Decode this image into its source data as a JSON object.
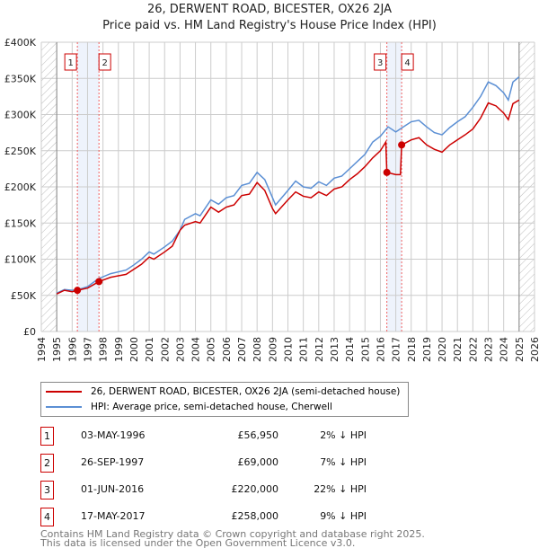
{
  "title": "26, DERWENT ROAD, BICESTER, OX26 2JA",
  "subtitle": "Price paid vs. HM Land Registry's House Price Index (HPI)",
  "chart_data": {
    "type": "line",
    "title": "26, DERWENT ROAD, BICESTER, OX26 2JA",
    "subtitle": "Price paid vs. HM Land Registry's House Price Index (HPI)",
    "xlim": [
      1994,
      2026
    ],
    "ylim": [
      0,
      400000
    ],
    "x_ticks": [
      "1994",
      "1995",
      "1996",
      "1997",
      "1998",
      "1999",
      "2000",
      "2001",
      "2002",
      "2003",
      "2004",
      "2005",
      "2006",
      "2007",
      "2008",
      "2009",
      "2010",
      "2011",
      "2012",
      "2013",
      "2014",
      "2015",
      "2016",
      "2017",
      "2018",
      "2019",
      "2020",
      "2021",
      "2022",
      "2023",
      "2024",
      "2025",
      "2026"
    ],
    "y_ticks": [
      "£0",
      "£50K",
      "£100K",
      "£150K",
      "£200K",
      "£250K",
      "£300K",
      "£350K",
      "£400K"
    ],
    "grid": true,
    "series": [
      {
        "name": "26, DERWENT ROAD, BICESTER, OX26 2JA (semi-detached house)",
        "color": "#cc0000",
        "x": [
          1995,
          1995.5,
          1996,
          1996.34,
          1997,
          1997.74,
          1998.5,
          1999.5,
          2000.5,
          2001,
          2001.3,
          2002,
          2002.5,
          2003,
          2003.3,
          2004,
          2004.3,
          2005,
          2005.5,
          2006,
          2006.5,
          2007,
          2007.5,
          2008,
          2008.5,
          2009,
          2009.2,
          2010,
          2010.5,
          2011,
          2011.5,
          2012,
          2012.5,
          2013,
          2013.5,
          2014,
          2014.5,
          2015,
          2015.5,
          2016,
          2016.35,
          2016.42,
          2017,
          2017.3,
          2017.38,
          2018,
          2018.5,
          2019,
          2019.5,
          2020,
          2020.5,
          2021,
          2021.5,
          2022,
          2022.5,
          2023,
          2023.5,
          2024,
          2024.3,
          2024.6,
          2025
        ],
        "y": [
          52000,
          57000,
          55000,
          56950,
          60000,
          69000,
          75000,
          79000,
          93000,
          103000,
          100000,
          110000,
          118000,
          140000,
          147000,
          152000,
          150000,
          172000,
          165000,
          172000,
          175000,
          188000,
          190000,
          206000,
          195000,
          170000,
          163000,
          182000,
          193000,
          187000,
          185000,
          193000,
          188000,
          197000,
          200000,
          210000,
          218000,
          228000,
          240000,
          250000,
          262000,
          220000,
          217000,
          217000,
          258000,
          265000,
          268000,
          258000,
          252000,
          248000,
          258000,
          265000,
          272000,
          280000,
          295000,
          316000,
          312000,
          302000,
          293000,
          315000,
          320000
        ]
      },
      {
        "name": "HPI: Average price, semi-detached house, Cherwell",
        "color": "#5b8fd4",
        "x": [
          1995,
          1995.5,
          1996,
          1996.4,
          1997,
          1997.7,
          1998.5,
          1999.5,
          2000,
          2000.5,
          2001,
          2001.3,
          2002,
          2002.5,
          2003,
          2003.3,
          2004,
          2004.3,
          2005,
          2005.5,
          2006,
          2006.5,
          2007,
          2007.5,
          2008,
          2008.5,
          2009,
          2009.2,
          2010,
          2010.5,
          2011,
          2011.5,
          2012,
          2012.5,
          2013,
          2013.5,
          2014,
          2014.5,
          2015,
          2015.5,
          2016,
          2016.5,
          2017,
          2017.5,
          2018,
          2018.5,
          2019,
          2019.5,
          2020,
          2020.5,
          2021,
          2021.5,
          2022,
          2022.5,
          2023,
          2023.5,
          2024,
          2024.3,
          2024.6,
          2025
        ],
        "y": [
          53000,
          58000,
          57000,
          58000,
          62000,
          73000,
          80000,
          85000,
          92000,
          100000,
          110000,
          107000,
          117000,
          125000,
          140000,
          155000,
          163000,
          160000,
          182000,
          176000,
          185000,
          188000,
          202000,
          205000,
          220000,
          210000,
          185000,
          175000,
          195000,
          208000,
          200000,
          198000,
          207000,
          202000,
          212000,
          215000,
          225000,
          235000,
          245000,
          262000,
          270000,
          283000,
          276000,
          283000,
          290000,
          292000,
          283000,
          275000,
          272000,
          282000,
          290000,
          297000,
          310000,
          325000,
          345000,
          340000,
          330000,
          320000,
          345000,
          352000
        ]
      }
    ],
    "sales": [
      {
        "label": "1",
        "date": "03-MAY-1996",
        "x": 1996.34,
        "price": "£56,950",
        "value": 56950,
        "hpi": "2% ↓ HPI"
      },
      {
        "label": "2",
        "date": "26-SEP-1997",
        "x": 1997.74,
        "price": "£69,000",
        "value": 69000,
        "hpi": "7% ↓ HPI"
      },
      {
        "label": "3",
        "date": "01-JUN-2016",
        "x": 2016.42,
        "price": "£220,000",
        "value": 220000,
        "hpi": "22% ↓ HPI"
      },
      {
        "label": "4",
        "date": "17-MAY-2017",
        "x": 2017.38,
        "price": "£258,000",
        "value": 258000,
        "hpi": "9% ↓ HPI"
      }
    ],
    "hatched_ranges": [
      [
        1994,
        1995
      ],
      [
        2025,
        2026
      ]
    ]
  },
  "footer": [
    "Contains HM Land Registry data © Crown copyright and database right 2025.",
    "This data is licensed under the Open Government Licence v3.0."
  ]
}
